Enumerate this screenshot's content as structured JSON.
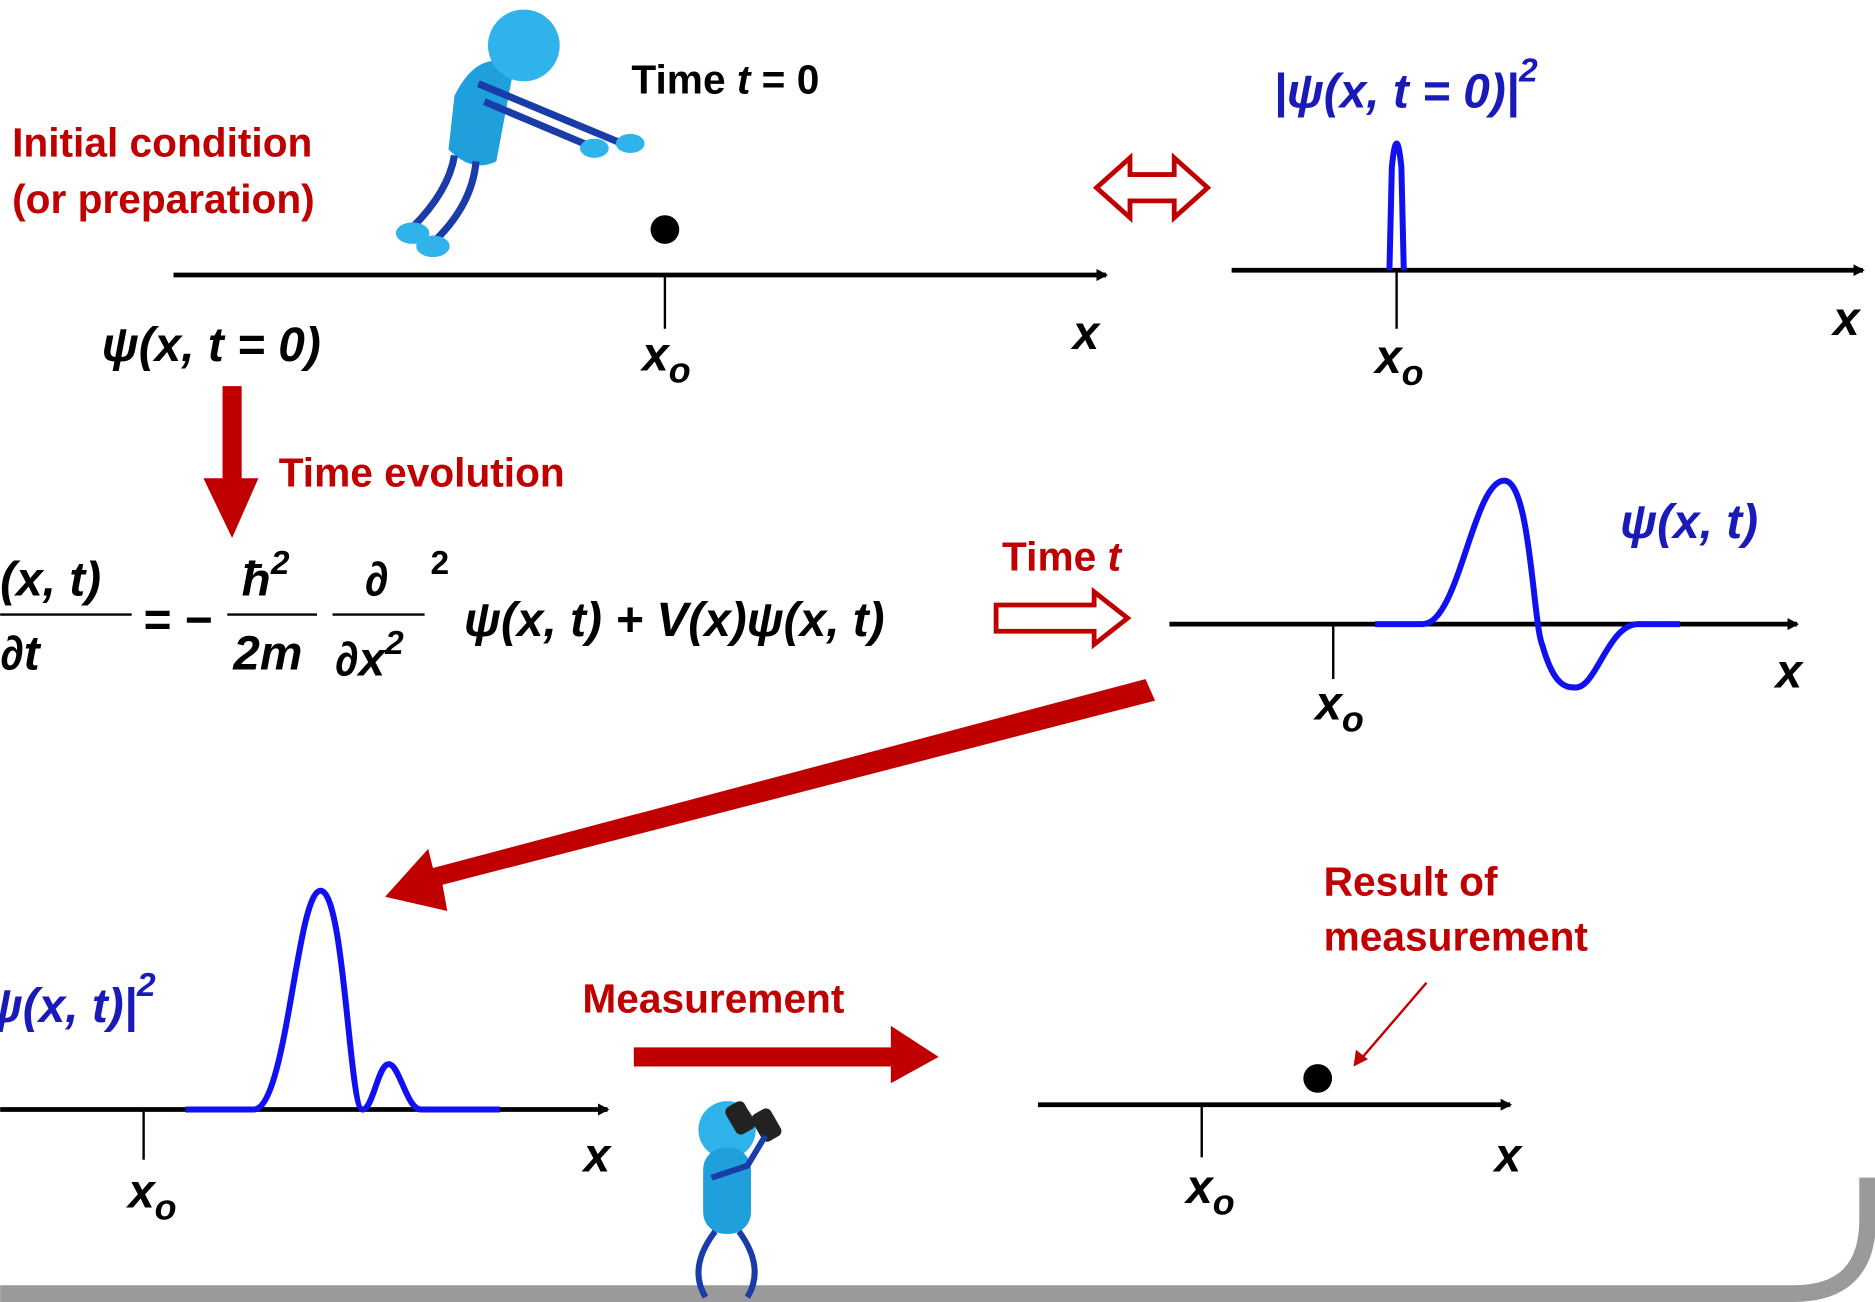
{
  "top_left": {
    "title": [
      "Initial condition",
      "(or preparation)"
    ],
    "time": {
      "word": "Time",
      "var": "t",
      "rest": "= 0"
    },
    "psi": "ψ(x, t = 0)",
    "axis": {
      "x": "x",
      "tick": "x",
      "tick_sub": "o"
    }
  },
  "top_right": {
    "label": "|ψ(x, t = 0)|",
    "power": "2",
    "axis": {
      "x": "x",
      "tick": "x",
      "tick_sub": "o"
    }
  },
  "evolution": {
    "label": "Time evolution",
    "equation": {
      "lhs_num": "(x, t)",
      "lhs_den": "∂t",
      "eq": "= −",
      "c_num": "ħ",
      "c_num_pow": "2",
      "c_den": "2m",
      "d_num": "∂",
      "d_den": "∂x",
      "d_den_pow": "2",
      "d_pow": "2",
      "rhs": "ψ(x, t) + V(x)ψ(x, t)"
    }
  },
  "middle_right": {
    "time": {
      "word": "Time",
      "var": "t"
    },
    "label": "ψ(x, t)",
    "axis": {
      "x": "x",
      "tick": "x",
      "tick_sub": "o"
    }
  },
  "bottom_left": {
    "label": "ψ(x, t)|",
    "power": "2",
    "axis": {
      "x": "x",
      "tick": "x",
      "tick_sub": "o"
    }
  },
  "measurement": "Measurement",
  "bottom_right": {
    "result": [
      "Result of",
      "measurement"
    ],
    "axis": {
      "x": "x",
      "tick": "x",
      "tick_sub": "o"
    }
  }
}
